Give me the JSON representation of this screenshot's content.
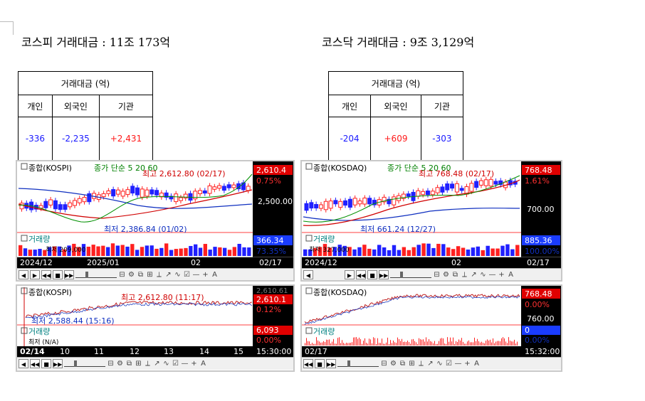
{
  "kospi": {
    "summary": "코스피 거래대금 : 11조 173억",
    "table": {
      "title": "거래대금 (억)",
      "headers": [
        "개인",
        "외국인",
        "기관"
      ],
      "values": [
        "-336",
        "-2,235",
        "+2,431"
      ]
    },
    "daily": {
      "title": "종합(KOSPI)",
      "legend": "종가 단순 5 20 60",
      "high": "최고 2,612.80 (02/17)",
      "low": "최저 2,386.84 (01/02)",
      "price_now": "2,610.4",
      "change": "0.75%",
      "axis_price": "2,500.00",
      "volume_title": "거래량",
      "volume_label": "최저 209,000",
      "volume_now": "366.34",
      "volume_pct": "73.35%",
      "date_ticks": [
        "2024/12",
        "2025/01",
        "02"
      ],
      "date_now": "02/17"
    },
    "intraday": {
      "title": "종합(KOSPI)",
      "high": "최고 2,612.80 (11:17)",
      "low": "최저 2,588.44 (15:16)",
      "price_top": "2,610.61",
      "price_now": "2,610.1",
      "change": "0.12%",
      "volume_now": "6,093",
      "volume_pct": "0.00%",
      "volume_title": "거래량",
      "volume_label": "최저 (N/A)",
      "date_ticks": [
        "02/14",
        "10",
        "11",
        "12",
        "13",
        "14",
        "15"
      ],
      "time_now": "15:30:00"
    }
  },
  "kosdaq": {
    "summary": "코스닥 거래대금 : 9조 3,129억",
    "table": {
      "title": "거래대금 (억)",
      "headers": [
        "개인",
        "외국인",
        "기관"
      ],
      "values": [
        "-204",
        "+609",
        "-303"
      ]
    },
    "daily": {
      "title": "종합(KOSDAQ)",
      "legend": "종가 단순 5 20 60",
      "high": "최고 768.48 (02/17)",
      "low": "최저 661.24 (12/27)",
      "price_now": "768.48",
      "change": "1.61%",
      "axis_price": "700.00",
      "volume_title": "거래량",
      "volume_label": "최저 327,000",
      "volume_now": "885.36",
      "volume_pct": "100.00%",
      "date_ticks": [
        "2024/12",
        "02"
      ],
      "date_now": "02/17"
    },
    "intraday": {
      "title": "종합(KOSDAQ)",
      "price_now": "768.48",
      "change": "0.00%",
      "axis_price": "760.00",
      "volume_now": "0",
      "volume_pct": "0.00%",
      "volume_title": "거래량",
      "date_ticks": [
        "02/17"
      ],
      "time_now": "15:32:00"
    }
  },
  "toolbar_glyphs": [
    "⊟",
    "⚙",
    "⧉",
    "⊞",
    "⊡",
    "⟂",
    "⊥",
    "↗",
    "∿",
    "⊘",
    "☑",
    "—",
    "+",
    "A"
  ],
  "colors": {
    "up": "#ff2020",
    "down": "#2020ff",
    "ma5": "#00a000",
    "ma20": "#d00000",
    "ma60": "#0030c0",
    "dark": "#000000"
  }
}
